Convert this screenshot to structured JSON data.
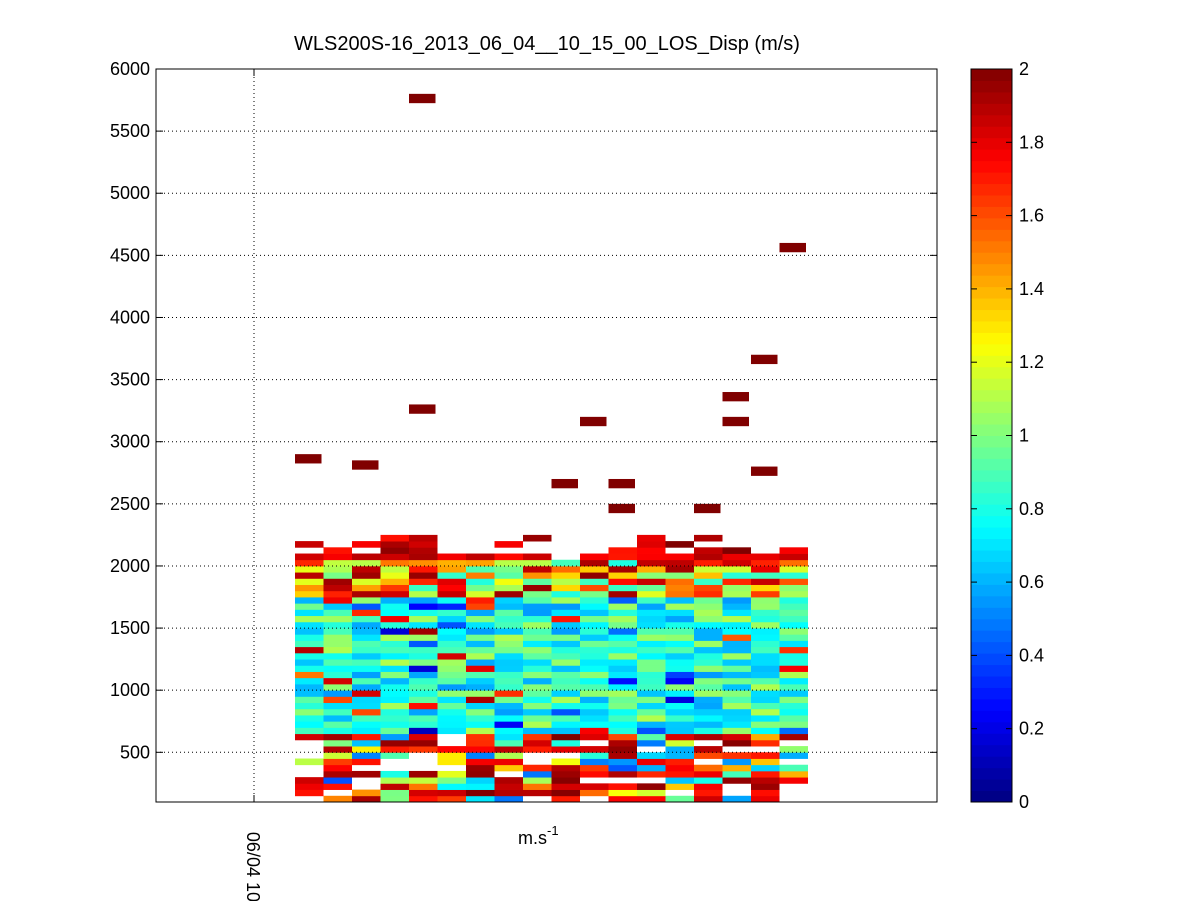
{
  "chart_data": {
    "type": "heatmap",
    "title": "WLS200S-16_2013_06_04__10_15_00_LOS_Disp (m/s)",
    "xlabel": "m.s",
    "xlabel_superscript": "-1",
    "x_tick_labels": [
      "06/04 10"
    ],
    "ylabel": "",
    "ylim": [
      100,
      6000
    ],
    "y_ticks": [
      500,
      1000,
      1500,
      2000,
      2500,
      3000,
      3500,
      4000,
      4500,
      5000,
      5500,
      6000
    ],
    "grid": true,
    "colormap": "jet",
    "colorbar": {
      "range": [
        0,
        2
      ],
      "ticks": [
        0,
        0.2,
        0.4,
        0.6,
        0.8,
        1,
        1.2,
        1.4,
        1.6,
        1.8,
        2
      ],
      "tick_labels": [
        "0",
        "0.2",
        "0.4",
        "0.6",
        "0.8",
        "1",
        "1.2",
        "1.4",
        "1.6",
        "1.8",
        "2"
      ]
    },
    "num_time_columns": 18,
    "range_gate_m": 50,
    "approx_profile_top_m": 2250,
    "isolated_high_cells": [
      {
        "column": 0,
        "altitude_m": 2850,
        "value": 2
      },
      {
        "column": 2,
        "altitude_m": 2800,
        "value": 2
      },
      {
        "column": 4,
        "altitude_m": 5750,
        "value": 2
      },
      {
        "column": 4,
        "altitude_m": 3250,
        "value": 2
      },
      {
        "column": 9,
        "altitude_m": 2650,
        "value": 2
      },
      {
        "column": 10,
        "altitude_m": 3150,
        "value": 2
      },
      {
        "column": 11,
        "altitude_m": 2650,
        "value": 2
      },
      {
        "column": 11,
        "altitude_m": 2450,
        "value": 2
      },
      {
        "column": 14,
        "altitude_m": 2450,
        "value": 2
      },
      {
        "column": 15,
        "altitude_m": 3350,
        "value": 2
      },
      {
        "column": 15,
        "altitude_m": 3150,
        "value": 2
      },
      {
        "column": 16,
        "altitude_m": 3650,
        "value": 2
      },
      {
        "column": 16,
        "altitude_m": 2750,
        "value": 2
      },
      {
        "column": 17,
        "altitude_m": 4550,
        "value": 2
      }
    ]
  }
}
